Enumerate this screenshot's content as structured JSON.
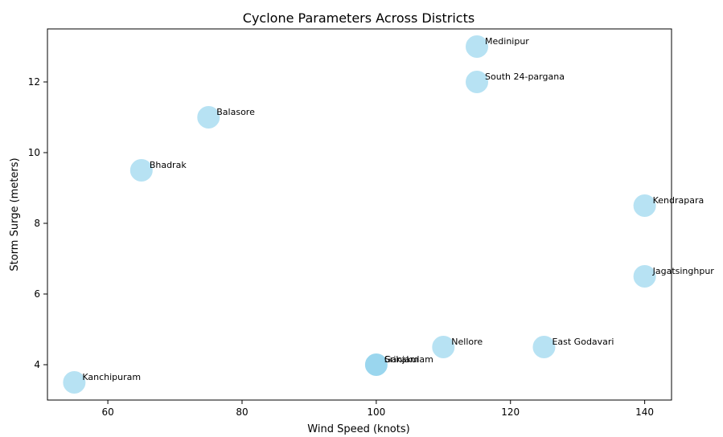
{
  "chart_data": {
    "type": "scatter",
    "title": "Cyclone Parameters Across Districts",
    "xlabel": "Wind Speed (knots)",
    "ylabel": "Storm Surge (meters)",
    "xlim": [
      51,
      144
    ],
    "ylim": [
      3,
      13.5
    ],
    "xticks": [
      60,
      80,
      100,
      120,
      140
    ],
    "yticks": [
      4,
      6,
      8,
      10,
      12
    ],
    "grid": false,
    "marker_color": "#87ceeb",
    "points": [
      {
        "label": "Medinipur",
        "x": 115,
        "y": 13
      },
      {
        "label": "South 24-pargana",
        "x": 115,
        "y": 12
      },
      {
        "label": "Balasore",
        "x": 75,
        "y": 11
      },
      {
        "label": "Bhadrak",
        "x": 65,
        "y": 9.5
      },
      {
        "label": "Kendrapara",
        "x": 140,
        "y": 8.5
      },
      {
        "label": "Jagatsinghpur",
        "x": 140,
        "y": 6.5
      },
      {
        "label": "Nellore",
        "x": 110,
        "y": 4.5
      },
      {
        "label": "East Godavari",
        "x": 125,
        "y": 4.5
      },
      {
        "label": "Ganjam",
        "x": 100,
        "y": 4
      },
      {
        "label": "Srikakulam",
        "x": 100,
        "y": 4
      },
      {
        "label": "Kanchipuram",
        "x": 55,
        "y": 3.5
      }
    ]
  }
}
